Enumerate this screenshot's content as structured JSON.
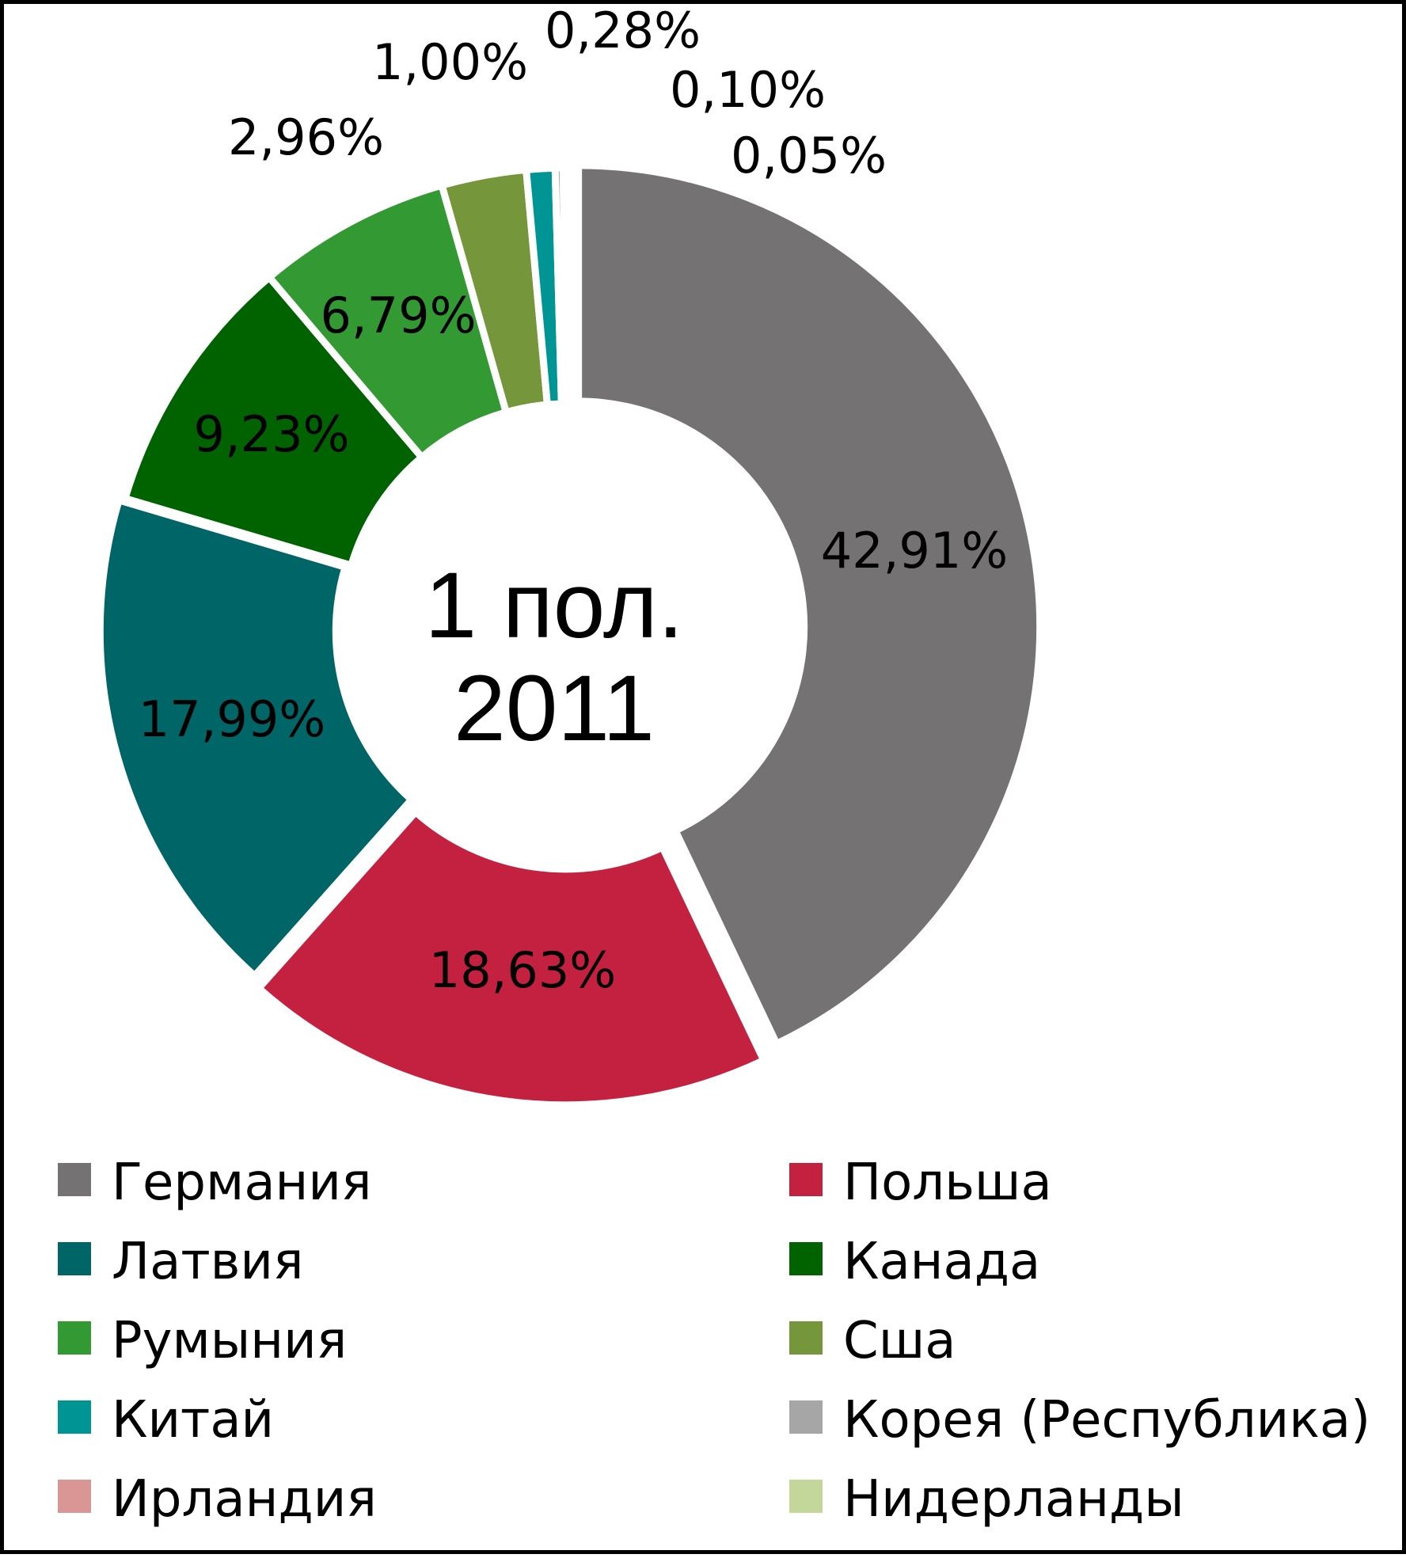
{
  "chart_data": {
    "type": "pie",
    "variant": "donut",
    "center_label": [
      "1 пол.",
      "2011"
    ],
    "series": [
      {
        "name": "Германия",
        "value": 42.91,
        "label": "42,91%",
        "color": "#747272"
      },
      {
        "name": "Польша",
        "value": 18.63,
        "label": "18,63%",
        "color": "#C3213F"
      },
      {
        "name": "Латвия",
        "value": 17.99,
        "label": "17,99%",
        "color": "#006566"
      },
      {
        "name": "Канада",
        "value": 9.23,
        "label": "9,23%",
        "color": "#006300"
      },
      {
        "name": "Румыния",
        "value": 6.79,
        "label": "6,79%",
        "color": "#339933"
      },
      {
        "name": "Сша",
        "value": 2.96,
        "label": "2,96%",
        "color": "#76963C"
      },
      {
        "name": "Китай",
        "value": 1.0,
        "label": "1,00%",
        "color": "#009595"
      },
      {
        "name": "Корея (Республика)",
        "value": 0.28,
        "label": "0,28%",
        "color": "#A6A6A6"
      },
      {
        "name": "Ирландия",
        "value": 0.1,
        "label": "0,10%",
        "color": "#D99694"
      },
      {
        "name": "Нидерланды",
        "value": 0.05,
        "label": "0,05%",
        "color": "#C4D79B"
      }
    ],
    "legend_position": "bottom",
    "legend_order": [
      "Германия",
      "Польша",
      "Латвия",
      "Канада",
      "Румыния",
      "Сша",
      "Китай",
      "Корея (Республика)",
      "Ирландия",
      "Нидерланды"
    ]
  }
}
